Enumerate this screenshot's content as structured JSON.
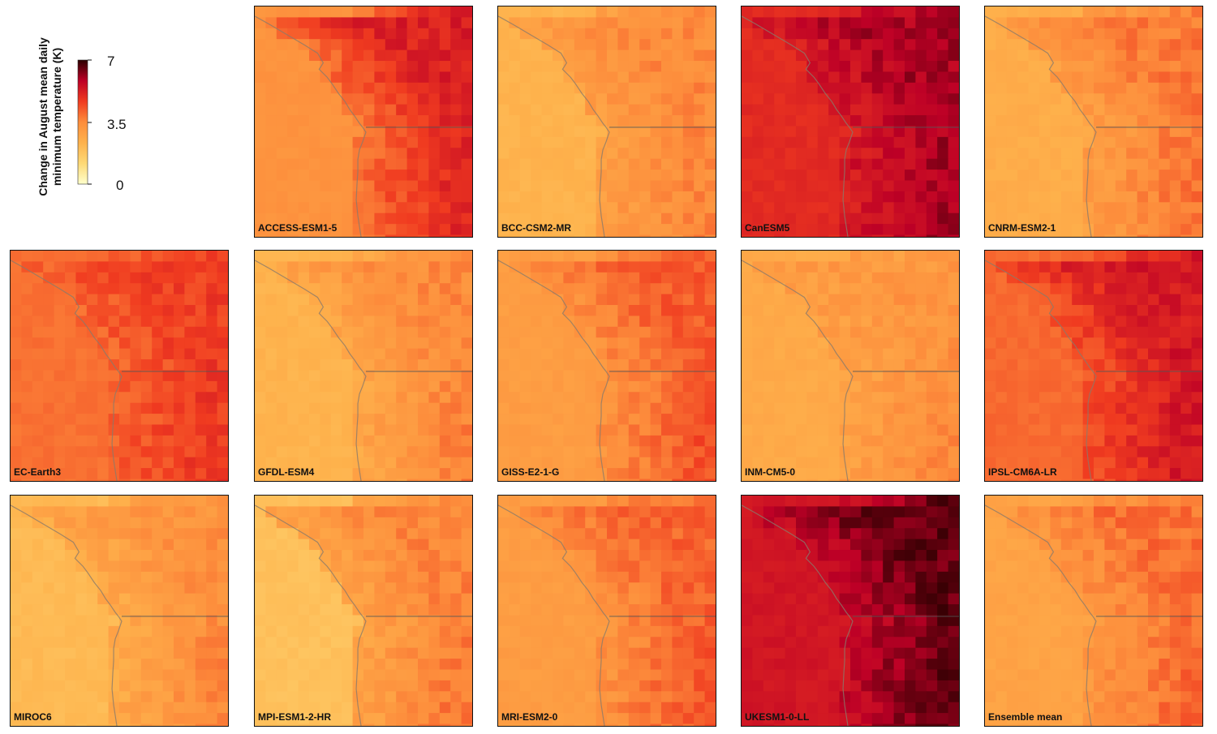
{
  "legend": {
    "title_line1": "Change in August mean daily",
    "title_line2": "minimum temperature (K)",
    "ticks": [
      "7",
      "3.5",
      "0"
    ],
    "colors": [
      "#ffffcc",
      "#fed976",
      "#feb24c",
      "#fd8d3c",
      "#f03b20",
      "#bd0026",
      "#2a0000"
    ]
  },
  "chart_data": {
    "type": "heatmap",
    "value_range": [
      0,
      7
    ],
    "colorbar_ticks": [
      0,
      3.5,
      7
    ],
    "panels": [
      {
        "name": "ACCESS-ESM1-5",
        "coast": 3.3,
        "base": 3.9,
        "inland": 5.0,
        "north_inland": 5.2
      },
      {
        "name": "BCC-CSM2-MR",
        "coast": 2.3,
        "base": 3.0,
        "inland": 3.6,
        "north_inland": 3.3
      },
      {
        "name": "CanESM5",
        "coast": 5.0,
        "base": 5.3,
        "inland": 6.0,
        "north_inland": 5.8
      },
      {
        "name": "CNRM-ESM2-1",
        "coast": 2.5,
        "base": 3.0,
        "inland": 3.9,
        "north_inland": 3.5
      },
      {
        "name": "EC-Earth3",
        "coast": 3.9,
        "base": 4.1,
        "inland": 4.8,
        "north_inland": 4.3
      },
      {
        "name": "GFDL-ESM4",
        "coast": 2.3,
        "base": 2.7,
        "inland": 3.7,
        "north_inland": 3.1
      },
      {
        "name": "GISS-E2-1-G",
        "coast": 3.0,
        "base": 3.3,
        "inland": 4.4,
        "north_inland": 3.8
      },
      {
        "name": "INM-CM5-0",
        "coast": 2.6,
        "base": 2.9,
        "inland": 3.6,
        "north_inland": 2.7
      },
      {
        "name": "IPSL-CM6A-LR",
        "coast": 4.0,
        "base": 4.4,
        "inland": 5.4,
        "north_inland": 5.1
      },
      {
        "name": "MIROC6",
        "coast": 2.1,
        "base": 2.6,
        "inland": 3.6,
        "north_inland": 2.9
      },
      {
        "name": "MPI-ESM1-2-HR",
        "coast": 1.9,
        "base": 2.8,
        "inland": 3.9,
        "north_inland": 3.0
      },
      {
        "name": "MRI-ESM2-0",
        "coast": 3.0,
        "base": 3.3,
        "inland": 4.3,
        "north_inland": 3.7
      },
      {
        "name": "UKESM1-0-LL",
        "coast": 5.4,
        "base": 5.6,
        "inland": 6.6,
        "north_inland": 6.3
      },
      {
        "name": "Ensemble mean",
        "coast": 2.8,
        "base": 3.2,
        "inland": 4.1,
        "north_inland": 3.6
      }
    ]
  }
}
